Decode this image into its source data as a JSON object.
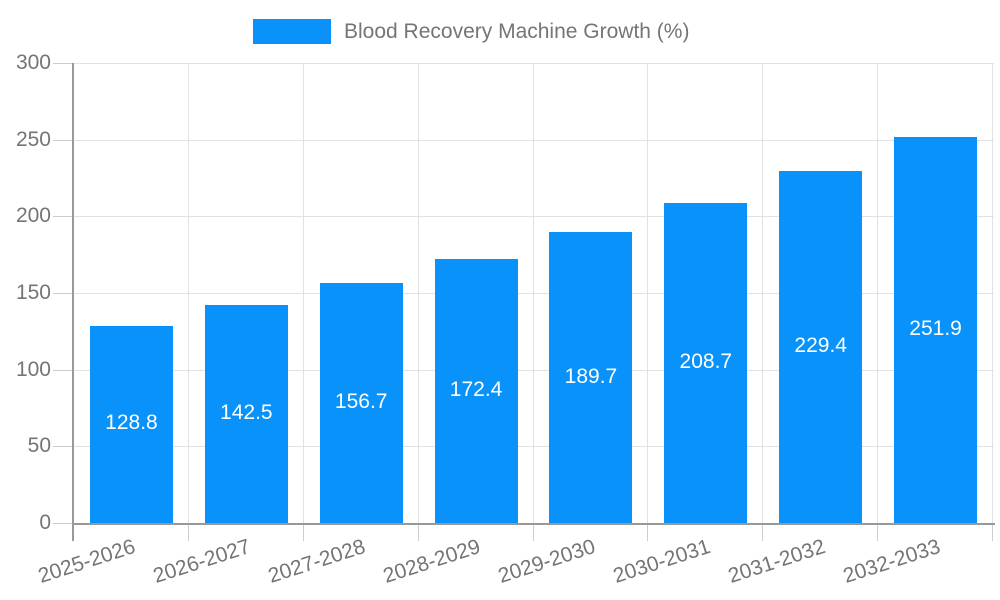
{
  "legend": {
    "label": "Blood Recovery Machine Growth (%)"
  },
  "colors": {
    "bar": "#0892fa",
    "grid": "#e2e2e2",
    "tick": "#cccccc",
    "axis": "#999999",
    "text": "#757575",
    "value_label": "#ffffff",
    "background": "#ffffff"
  },
  "chart_data": {
    "type": "bar",
    "title": "Blood Recovery Machine Growth (%)",
    "categories": [
      "2025-2026",
      "2026-2027",
      "2027-2028",
      "2028-2029",
      "2029-2030",
      "2030-2031",
      "2031-2032",
      "2032-2033"
    ],
    "values": [
      128.8,
      142.5,
      156.7,
      172.4,
      189.7,
      208.7,
      229.4,
      251.9
    ],
    "xlabel": "",
    "ylabel": "",
    "ylim": [
      0,
      300
    ],
    "yticks": [
      0,
      50,
      100,
      150,
      200,
      250,
      300
    ],
    "grid": true,
    "legend_position": "top",
    "value_label_position": "inside-center",
    "x_tick_rotation_deg": -18
  }
}
